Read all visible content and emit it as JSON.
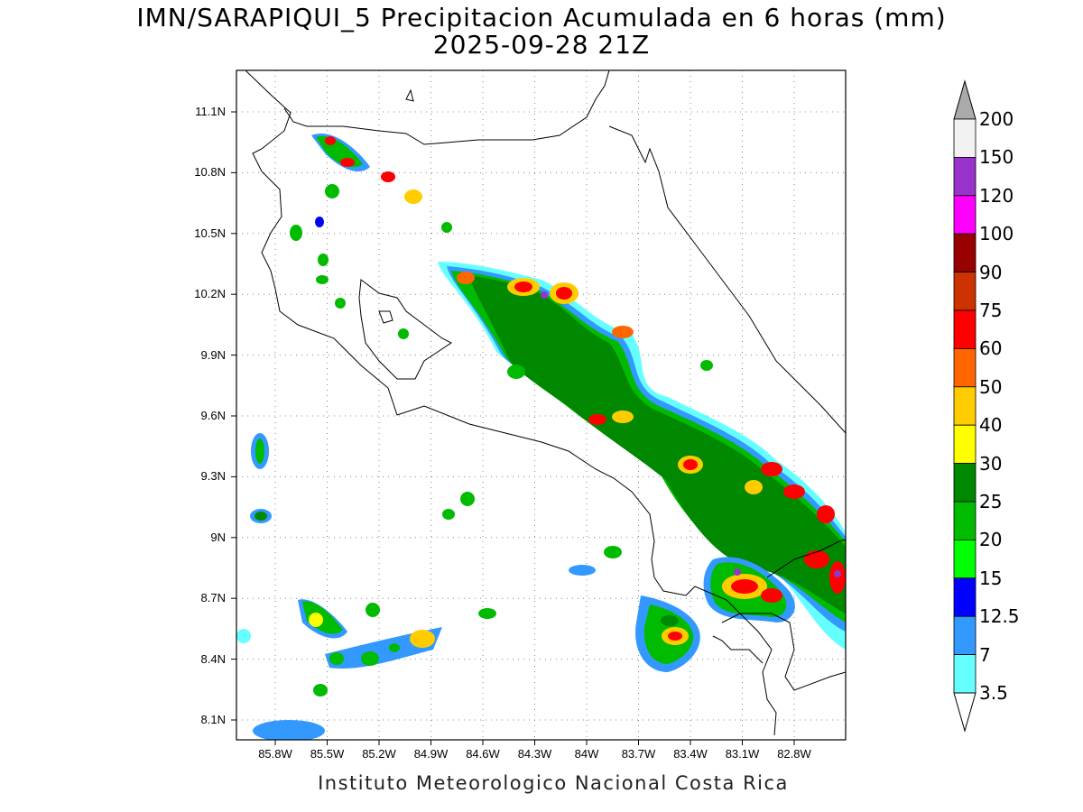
{
  "title": {
    "line1": "IMN/SARAPIQUI_5 Precipitacion Acumulada en 6 horas (mm)",
    "line2": "2025-09-28 21Z"
  },
  "axes": {
    "lat_labels": [
      "11.1N",
      "10.8N",
      "10.5N",
      "10.2N",
      "9.9N",
      "9.6N",
      "9.3N",
      "9N",
      "8.7N",
      "8.4N",
      "8.1N"
    ],
    "lon_labels": [
      "85.8W",
      "85.5W",
      "85.2W",
      "84.9W",
      "84.6W",
      "84.3W",
      "84W",
      "83.7W",
      "83.4W",
      "83.1W",
      "82.8W"
    ]
  },
  "colorbar": {
    "levels": [
      "200",
      "150",
      "120",
      "100",
      "90",
      "75",
      "60",
      "50",
      "40",
      "30",
      "25",
      "20",
      "15",
      "12.5",
      "7",
      "3.5"
    ],
    "colors": [
      "#aaaaaa",
      "#f2f2f2",
      "#9933cc",
      "#ff00ff",
      "#990000",
      "#cc3300",
      "#ff0000",
      "#ff6600",
      "#ffcc00",
      "#ffff00",
      "#008800",
      "#00bb00",
      "#00ff00",
      "#0000ff",
      "#3399ff",
      "#66ffff",
      "#ffffff"
    ]
  },
  "footer": "Instituto Meteorologico Nacional Costa Rica"
}
